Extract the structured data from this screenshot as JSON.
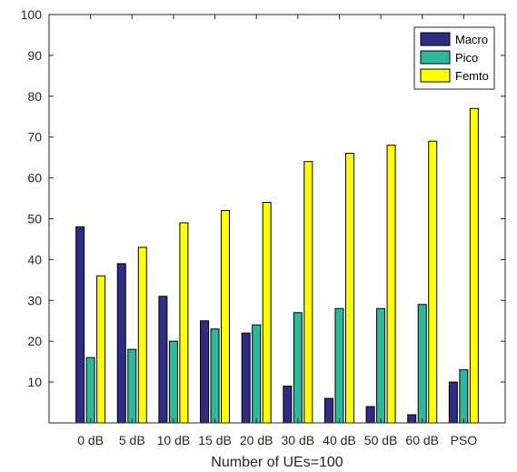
{
  "chart_data": {
    "type": "bar",
    "title": "",
    "xlabel": "Number of UEs=100",
    "ylabel": "",
    "ylim": [
      0,
      100
    ],
    "yticks": [
      10,
      20,
      30,
      40,
      50,
      60,
      70,
      80,
      90,
      100
    ],
    "grid": false,
    "legend_position": "top-right",
    "categories": [
      "0 dB",
      "5 dB",
      "10 dB",
      "15 dB",
      "20 dB",
      "30 dB",
      "40 dB",
      "50 dB",
      "60 dB",
      "PSO"
    ],
    "series": [
      {
        "name": "Macro",
        "color": "#2e2c84",
        "values": [
          48,
          39,
          31,
          25,
          22,
          9,
          6,
          4,
          2,
          10
        ]
      },
      {
        "name": "Pico",
        "color": "#2cb89a",
        "values": [
          16,
          18,
          20,
          23,
          24,
          27,
          28,
          28,
          29,
          13
        ]
      },
      {
        "name": "Femto",
        "color": "#ffff00",
        "values": [
          36,
          43,
          49,
          52,
          54,
          64,
          66,
          68,
          69,
          77
        ]
      }
    ]
  }
}
